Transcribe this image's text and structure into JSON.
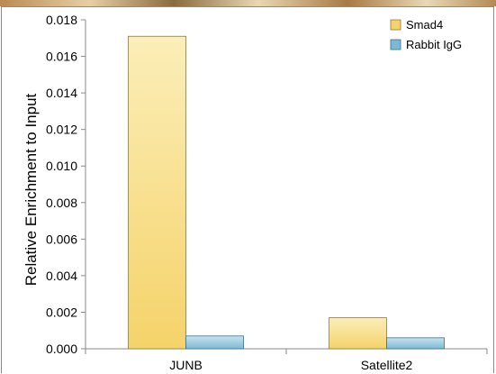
{
  "chart_data": {
    "type": "bar",
    "categories": [
      "JUNB",
      "Satellite2"
    ],
    "series": [
      {
        "name": "Smad4",
        "values": [
          0.0171,
          0.0017
        ]
      },
      {
        "name": "Rabbit IgG",
        "values": [
          0.0007,
          0.0006
        ]
      }
    ],
    "ylabel": "Relative Enrichment to Input",
    "xlabel": "",
    "ylim": [
      0,
      0.018
    ],
    "yticks": [
      "0.000",
      "0.002",
      "0.004",
      "0.006",
      "0.008",
      "0.010",
      "0.012",
      "0.014",
      "0.016",
      "0.018"
    ],
    "legend": {
      "placement": "top-right",
      "entries": [
        "Smad4",
        "Rabbit IgG"
      ]
    },
    "grid": false,
    "colors": {
      "smad4_light": "#fbeeb8",
      "smad4_dark": "#f5d36a",
      "smad4_edge": "#8a7a4a",
      "igg_light": "#c6e4f0",
      "igg_dark": "#7fb8d4",
      "igg_edge": "#3d6f8a"
    }
  }
}
